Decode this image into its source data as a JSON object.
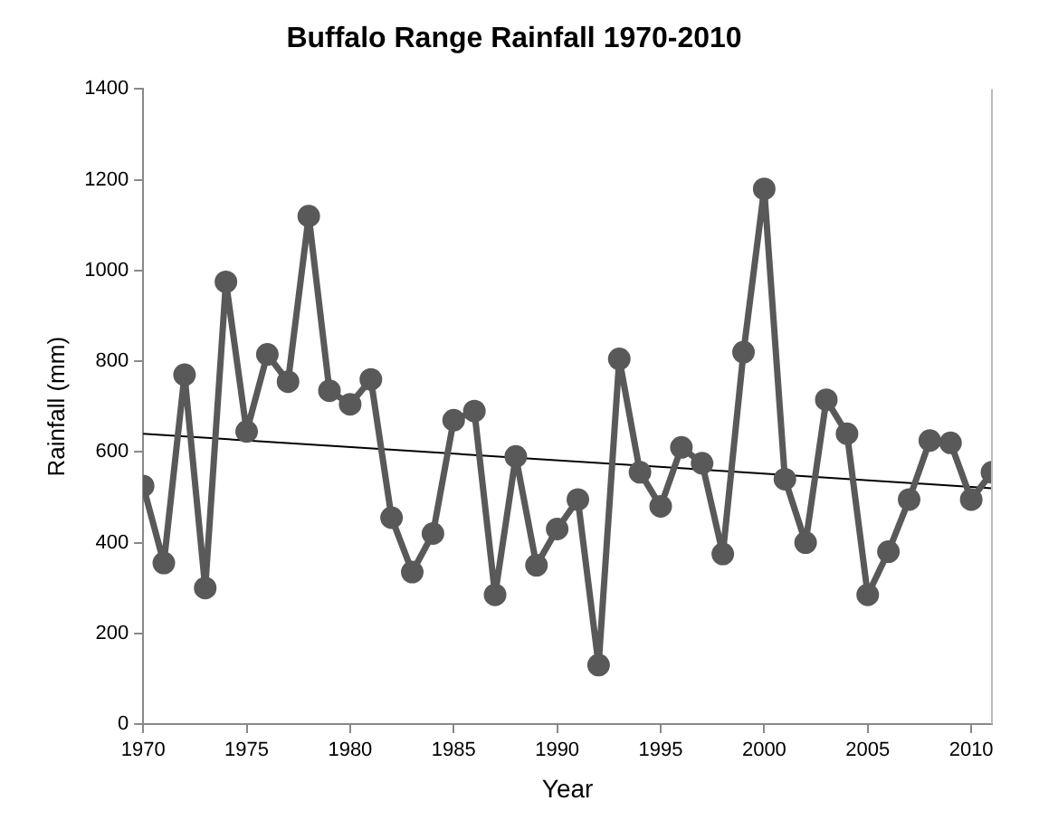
{
  "chart_data": {
    "type": "line",
    "title": "Buffalo Range Rainfall 1970-2010",
    "xlabel": "Year",
    "ylabel": "Rainfall (mm)",
    "x": [
      1970,
      1971,
      1972,
      1973,
      1974,
      1975,
      1976,
      1977,
      1978,
      1979,
      1980,
      1981,
      1982,
      1983,
      1984,
      1985,
      1986,
      1987,
      1988,
      1989,
      1990,
      1991,
      1992,
      1993,
      1994,
      1995,
      1996,
      1997,
      1998,
      1999,
      2000,
      2001,
      2002,
      2003,
      2004,
      2005,
      2006,
      2007,
      2008,
      2009,
      2010,
      2011
    ],
    "series": [
      {
        "color": "#595959",
        "values": [
          525,
          355,
          770,
          300,
          975,
          645,
          815,
          755,
          1120,
          735,
          705,
          760,
          455,
          335,
          420,
          670,
          690,
          285,
          590,
          350,
          430,
          495,
          130,
          805,
          555,
          480,
          610,
          575,
          375,
          820,
          1180,
          540,
          400,
          715,
          640,
          285,
          380,
          495,
          625,
          620,
          495,
          555
        ]
      },
      {
        "type": "line",
        "color": "#000000",
        "marker": "none",
        "x": [
          1970,
          2011
        ],
        "values": [
          640,
          520
        ]
      }
    ],
    "xlim": [
      1970,
      2011
    ],
    "xticks": [
      1970,
      1975,
      1980,
      1985,
      1990,
      1995,
      2000,
      2005,
      2010
    ],
    "ylim": [
      0,
      1400
    ],
    "yticks": [
      0,
      200,
      400,
      600,
      800,
      1000,
      1200,
      1400
    ],
    "grid": false,
    "legend": false,
    "marker": "circle"
  }
}
